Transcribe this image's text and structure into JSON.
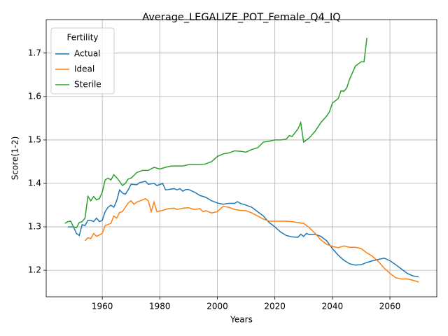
{
  "chart_data": {
    "type": "line",
    "title": "Average_LEGALIZE_POT_Female_Q4_IQ",
    "x_label": "Years",
    "y_label": "Score(1-2)",
    "legend_title": "Fertility",
    "legend": "upper left",
    "grid": true,
    "xlim": [
      1940.5,
      2076.3
    ],
    "ylim": [
      1.139,
      1.777
    ],
    "xticks": [
      1960,
      1980,
      2000,
      2020,
      2040,
      2060
    ],
    "yticks": [
      1.2,
      1.3,
      1.4,
      1.5,
      1.6,
      1.7
    ],
    "series": [
      {
        "name": "Actual",
        "color": "#1f77b4",
        "x": [
          1948,
          1950,
          1951,
          1952,
          1953,
          1954,
          1955,
          1956,
          1957,
          1958,
          1959,
          1960,
          1961,
          1962,
          1963,
          1964,
          1965,
          1966,
          1967,
          1968,
          1969,
          1970,
          1972,
          1973,
          1975,
          1976,
          1978,
          1979,
          1981,
          1982,
          1985,
          1986,
          1987,
          1988,
          1989,
          1990,
          1992,
          1994,
          1996,
          1998,
          2000,
          2002,
          2004,
          2006,
          2007,
          2008,
          2010,
          2012,
          2014,
          2016,
          2018,
          2020,
          2022,
          2024,
          2026,
          2028,
          2029,
          2030,
          2031,
          2032,
          2034,
          2036,
          2038,
          2040,
          2042,
          2044,
          2046,
          2048,
          2050,
          2052,
          2054,
          2056,
          2058,
          2060,
          2062,
          2064,
          2066,
          2068,
          2070
        ],
        "values": [
          1.3,
          1.3,
          1.285,
          1.28,
          1.305,
          1.303,
          1.315,
          1.315,
          1.312,
          1.32,
          1.312,
          1.315,
          1.335,
          1.345,
          1.35,
          1.345,
          1.36,
          1.385,
          1.378,
          1.375,
          1.385,
          1.398,
          1.397,
          1.402,
          1.405,
          1.398,
          1.4,
          1.395,
          1.4,
          1.385,
          1.388,
          1.385,
          1.388,
          1.382,
          1.386,
          1.386,
          1.38,
          1.372,
          1.368,
          1.36,
          1.355,
          1.352,
          1.354,
          1.354,
          1.358,
          1.354,
          1.35,
          1.345,
          1.335,
          1.325,
          1.31,
          1.3,
          1.288,
          1.28,
          1.277,
          1.276,
          1.283,
          1.278,
          1.285,
          1.282,
          1.283,
          1.278,
          1.268,
          1.25,
          1.235,
          1.223,
          1.215,
          1.212,
          1.213,
          1.218,
          1.222,
          1.225,
          1.228,
          1.222,
          1.213,
          1.203,
          1.193,
          1.187,
          1.185
        ]
      },
      {
        "name": "Ideal",
        "color": "#ff7f0e",
        "x": [
          1954,
          1955,
          1956,
          1957,
          1958,
          1960,
          1961,
          1963,
          1964,
          1965,
          1966,
          1967,
          1968,
          1969,
          1970,
          1971,
          1972,
          1974,
          1975,
          1976,
          1977,
          1978,
          1979,
          1981,
          1983,
          1985,
          1986,
          1988,
          1990,
          1992,
          1994,
          1995,
          1996,
          1998,
          2000,
          2002,
          2004,
          2006,
          2008,
          2010,
          2012,
          2014,
          2016,
          2018,
          2020,
          2022,
          2024,
          2026,
          2028,
          2030,
          2032,
          2034,
          2036,
          2038,
          2040,
          2042,
          2044,
          2046,
          2048,
          2050,
          2052,
          2054,
          2056,
          2058,
          2060,
          2062,
          2064,
          2066,
          2068,
          2070
        ],
        "values": [
          1.268,
          1.275,
          1.273,
          1.285,
          1.278,
          1.285,
          1.303,
          1.308,
          1.325,
          1.32,
          1.333,
          1.335,
          1.345,
          1.355,
          1.36,
          1.352,
          1.357,
          1.362,
          1.365,
          1.36,
          1.335,
          1.357,
          1.335,
          1.338,
          1.342,
          1.343,
          1.34,
          1.343,
          1.344,
          1.34,
          1.342,
          1.335,
          1.337,
          1.332,
          1.335,
          1.347,
          1.345,
          1.34,
          1.338,
          1.337,
          1.332,
          1.325,
          1.318,
          1.313,
          1.313,
          1.313,
          1.313,
          1.312,
          1.31,
          1.308,
          1.298,
          1.285,
          1.27,
          1.26,
          1.255,
          1.252,
          1.256,
          1.253,
          1.253,
          1.25,
          1.24,
          1.232,
          1.22,
          1.205,
          1.193,
          1.183,
          1.18,
          1.18,
          1.177,
          1.173
        ]
      },
      {
        "name": "Sterile",
        "color": "#2ca02c",
        "x": [
          1947,
          1948,
          1949,
          1950,
          1951,
          1952,
          1953,
          1954,
          1955,
          1956,
          1957,
          1958,
          1959,
          1960,
          1961,
          1962,
          1963,
          1964,
          1965,
          1966,
          1967,
          1968,
          1969,
          1970,
          1972,
          1974,
          1976,
          1978,
          1980,
          1982,
          1984,
          1986,
          1988,
          1990,
          1992,
          1994,
          1996,
          1998,
          2000,
          2002,
          2004,
          2006,
          2008,
          2010,
          2012,
          2014,
          2016,
          2018,
          2020,
          2022,
          2024,
          2025,
          2026,
          2028,
          2029,
          2030,
          2032,
          2034,
          2036,
          2038,
          2039,
          2040,
          2042,
          2043,
          2044,
          2045,
          2046,
          2048,
          2050,
          2051,
          2052
        ],
        "values": [
          1.308,
          1.312,
          1.313,
          1.3,
          1.298,
          1.31,
          1.312,
          1.32,
          1.37,
          1.36,
          1.37,
          1.362,
          1.365,
          1.38,
          1.408,
          1.412,
          1.408,
          1.42,
          1.413,
          1.405,
          1.395,
          1.4,
          1.41,
          1.412,
          1.425,
          1.43,
          1.43,
          1.437,
          1.433,
          1.437,
          1.44,
          1.44,
          1.44,
          1.443,
          1.443,
          1.443,
          1.445,
          1.45,
          1.462,
          1.468,
          1.47,
          1.475,
          1.474,
          1.472,
          1.478,
          1.482,
          1.495,
          1.497,
          1.5,
          1.5,
          1.502,
          1.51,
          1.508,
          1.525,
          1.54,
          1.495,
          1.505,
          1.52,
          1.54,
          1.555,
          1.565,
          1.585,
          1.595,
          1.613,
          1.612,
          1.62,
          1.64,
          1.67,
          1.68,
          1.68,
          1.735
        ]
      }
    ]
  }
}
